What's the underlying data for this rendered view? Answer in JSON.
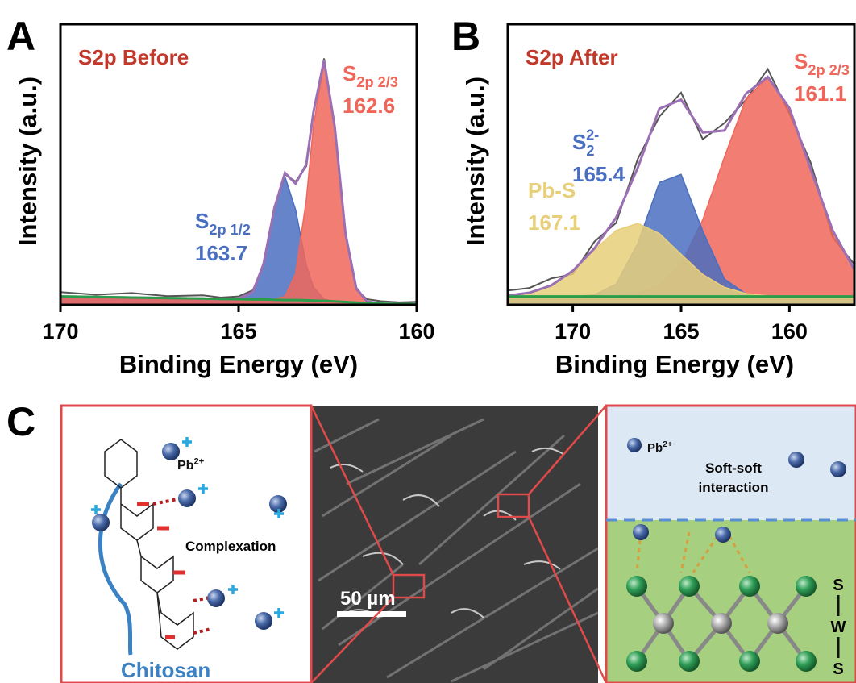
{
  "chart_data": [
    {
      "type": "line",
      "panel": "A",
      "title": "S2p Before",
      "y_label": "Intensity (a.u.)",
      "x_label": "Binding Energy (eV)",
      "x": [
        170,
        169,
        168,
        167,
        166,
        165.5,
        165,
        164.6,
        164.3,
        164.0,
        163.7,
        163.4,
        163.1,
        162.9,
        162.6,
        162.3,
        162.0,
        161.7,
        161.4,
        161,
        160.5,
        160
      ],
      "xlim": [
        170,
        160
      ],
      "xticks": [
        170,
        165,
        160
      ],
      "ylim": [
        0,
        100
      ],
      "series": [
        {
          "color": "#555555",
          "values": [
            4.5,
            3.6,
            4.2,
            3.1,
            3.4,
            2.6,
            3.0,
            5.2,
            14.0,
            34.8,
            46.5,
            43.9,
            49.4,
            69.0,
            87.8,
            62.9,
            25.9,
            5.4,
            2.0,
            1.3,
            0.9,
            1.1
          ]
        },
        {
          "color": "#4a6fc0",
          "fill": true,
          "values": [
            3,
            2.8,
            2.6,
            2.4,
            2.2,
            2.1,
            2.1,
            4.6,
            14.5,
            34,
            45.7,
            33.9,
            14.2,
            6.3,
            2.1,
            1.2,
            1,
            0.8,
            0.6,
            0.4,
            0.3,
            0.3
          ]
        },
        {
          "color": "#f0675a",
          "fill": true,
          "values": [
            3,
            2.8,
            2.6,
            2.4,
            2.2,
            2.1,
            2,
            1.9,
            1.9,
            1.9,
            3,
            11,
            37.4,
            63.7,
            86.4,
            63.4,
            25.4,
            6,
            1.2,
            0.4,
            0.3,
            0.3
          ]
        },
        {
          "color": "#9b6fb3",
          "values": [
            3,
            2.8,
            2.6,
            2.4,
            2.2,
            2.1,
            2.1,
            4.6,
            14.5,
            34.1,
            47,
            43.2,
            50,
            68.5,
            87.1,
            63.4,
            25.4,
            6,
            1.2,
            0.4,
            0.3,
            0.3
          ]
        },
        {
          "color": "#2a9d4a",
          "values": [
            3,
            2.8,
            2.6,
            2.4,
            2.2,
            2.1,
            2,
            1.9,
            1.9,
            1.8,
            1.7,
            1.7,
            1.6,
            1.5,
            1.4,
            1.2,
            1,
            0.8,
            0.6,
            0.4,
            0.3,
            0.3
          ]
        }
      ],
      "annotations": [
        {
          "main": "S",
          "sub": "2p 2/3",
          "value": "162.6",
          "color": "#f0675a"
        },
        {
          "main": "S",
          "sub": "2p 1/2",
          "value": "163.7",
          "color": "#4a6fc0"
        }
      ]
    },
    {
      "type": "line",
      "panel": "B",
      "title": "S2p After",
      "y_label": "Intensity (a.u.)",
      "x_label": "Binding Energy (eV)",
      "x": [
        173,
        172,
        171,
        170,
        169,
        168,
        167,
        166,
        165,
        164,
        163,
        162,
        161,
        160,
        159,
        158,
        157
      ],
      "xlim": [
        173,
        157
      ],
      "xticks": [
        170,
        165,
        160
      ],
      "ylim": [
        0,
        100
      ],
      "series": [
        {
          "color": "#555555",
          "values": [
            5.1,
            6.0,
            9.4,
            10.9,
            22.5,
            29.2,
            52.0,
            67.1,
            75.6,
            59.0,
            64.8,
            73.1,
            84.0,
            68.2,
            50.3,
            24.1,
            14.4
          ]
        },
        {
          "color": "#f0675a",
          "fill": true,
          "values": [
            3,
            3,
            3,
            3,
            3,
            3.2,
            4,
            6.9,
            14.6,
            30.3,
            52.7,
            73.5,
            81,
            70.1,
            47.9,
            26.5,
            12.5
          ]
        },
        {
          "color": "#4a6fc0",
          "fill": true,
          "values": [
            3,
            3,
            3,
            3,
            3.5,
            7.4,
            21.9,
            43.6,
            46.5,
            26.3,
            9.2,
            3.8,
            3,
            3,
            3,
            3,
            3
          ]
        },
        {
          "color": "#e8cf7a",
          "fill": true,
          "values": [
            3.3,
            4.3,
            6.9,
            12.1,
            19.6,
            26.5,
            29,
            25.4,
            18,
            10.8,
            6.2,
            4,
            3.2,
            3,
            3,
            3,
            3
          ]
        },
        {
          "color": "#9b6fb3",
          "values": [
            3.3,
            4.3,
            6.9,
            12.1,
            20.1,
            31.1,
            48.9,
            69.9,
            73.1,
            61.4,
            62.1,
            75.3,
            81.2,
            70.1,
            47.9,
            26.5,
            12.5
          ]
        },
        {
          "color": "#2a9d4a",
          "values": [
            3,
            3,
            3,
            3,
            3,
            3,
            3,
            3,
            3,
            3,
            3,
            3,
            3,
            3,
            3,
            3,
            3
          ]
        }
      ],
      "annotations": [
        {
          "main": "S",
          "sub": "2p 2/3",
          "value": "161.1",
          "color": "#f0675a"
        },
        {
          "main": "S",
          "sub": "2",
          "sup": "2-",
          "value": "165.4",
          "color": "#4a6fc0"
        },
        {
          "main": "Pb-S",
          "value": "167.1",
          "color": "#e8cf7a"
        }
      ]
    }
  ],
  "panel_c": {
    "label": "C",
    "left": {
      "ion": {
        "main": "Pb",
        "sup": "2+"
      },
      "process": "Complexation",
      "polymer": "Chitosan"
    },
    "middle": {
      "scale_bar": "50 µm"
    },
    "right": {
      "ion": {
        "main": "Pb",
        "sup": "2+"
      },
      "interaction": [
        "Soft-soft",
        "interaction"
      ],
      "layer": [
        "S",
        "W",
        "S"
      ]
    }
  }
}
